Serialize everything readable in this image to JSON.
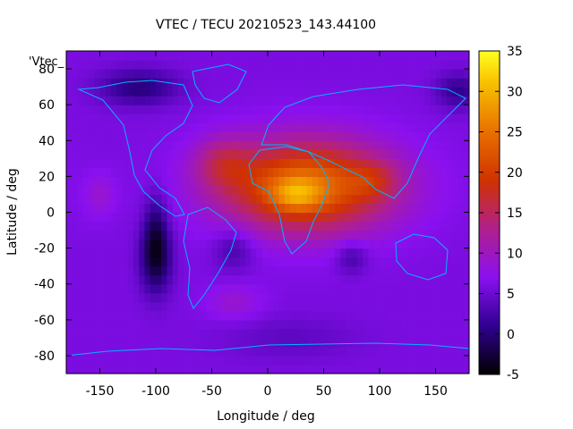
{
  "chart_data": {
    "type": "heatmap",
    "title": "VTEC / TECU 20210523_143.44100",
    "xlabel": "Longitude / deg",
    "ylabel": "Latitude / deg",
    "key_label": "'Vtec_",
    "xlim": [
      -180,
      180
    ],
    "ylim": [
      -90,
      90
    ],
    "zlim": [
      -5,
      35
    ],
    "x_ticks": [
      -150,
      -100,
      -50,
      0,
      50,
      100,
      150
    ],
    "y_ticks": [
      -80,
      -60,
      -40,
      -20,
      0,
      20,
      40,
      60,
      80
    ],
    "z_ticks": [
      -5,
      0,
      5,
      10,
      15,
      20,
      25,
      30,
      35
    ],
    "colormap": "gnuplot (black-purple-red-orange-yellow)",
    "features": [
      {
        "name": "equatorial-anomaly-peak",
        "lon": 25,
        "lat": 10,
        "vtec": 32
      },
      {
        "name": "south-pacific-depletion",
        "lon": -100,
        "lat": -25,
        "vtec": -3
      },
      {
        "name": "north-pacific-minimum",
        "lon": -110,
        "lat": 70,
        "vtec": 0
      }
    ]
  }
}
